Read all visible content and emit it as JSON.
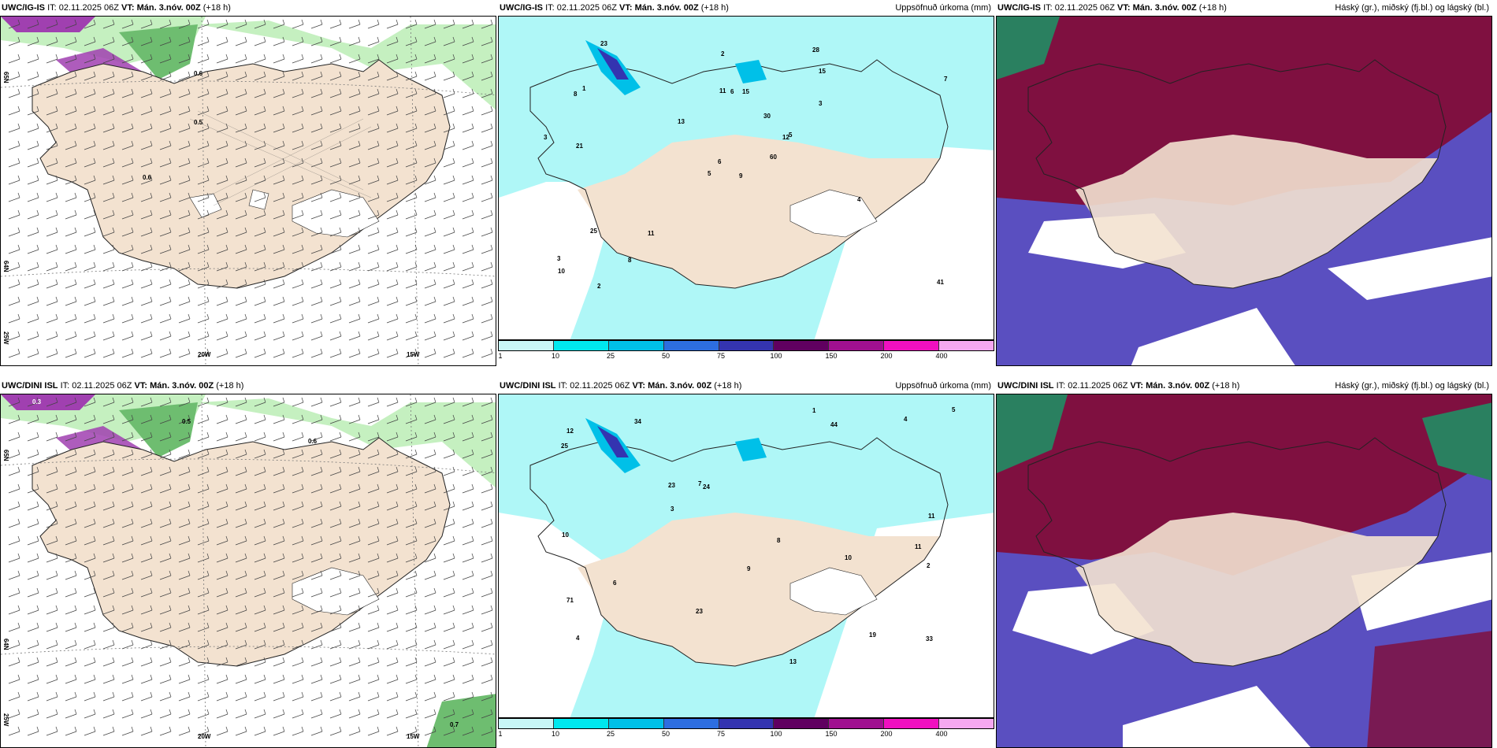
{
  "rows": [
    {
      "model": "UWC/IG-IS",
      "it_label": "IT: 02.11.2025 06Z",
      "vt_label": "VT: Mán. 3.nóv. 00Z",
      "lead": "(+18 h)",
      "precip_title": "Uppsöfnuð úrkoma (mm)",
      "cloud_title": "Háský (gr.), miðský (fj.bl.) og lágský (bl.)",
      "lon_labels": [
        "20W",
        "15W"
      ],
      "lat_labels": [
        "65N",
        "64N"
      ],
      "lon_side_label": "25W",
      "precip_values": [
        "9",
        "8",
        "6",
        "3",
        "12",
        "11",
        "28",
        "15",
        "15",
        "60",
        "23",
        "41",
        "21",
        "7",
        "5",
        "3",
        "2",
        "11",
        "30",
        "25",
        "13",
        "10",
        "8",
        "6",
        "5",
        "4",
        "1",
        "2",
        "3"
      ]
    },
    {
      "model": "UWC/DINI ISL",
      "it_label": "IT: 02.11.2025 06Z",
      "vt_label": "VT: Mán. 3.nóv. 00Z",
      "lead": "(+18 h)",
      "precip_title": "Uppsöfnuð úrkoma (mm)",
      "cloud_title": "Háský (gr.), miðský (fj.bl.) og lágský (bl.)",
      "lon_labels": [
        "20W",
        "15W"
      ],
      "lat_labels": [
        "65N",
        "64N"
      ],
      "lon_side_label": "25W",
      "precip_values": [
        "10",
        "11",
        "4",
        "34",
        "24",
        "19",
        "71",
        "44",
        "23",
        "13",
        "25",
        "10",
        "12",
        "33",
        "23",
        "11",
        "9",
        "8",
        "7",
        "6",
        "5",
        "4",
        "3",
        "2",
        "1"
      ]
    }
  ],
  "colorbar": {
    "ticks": [
      "1",
      "10",
      "25",
      "50",
      "75",
      "100",
      "150",
      "200",
      "400"
    ],
    "colors": [
      "#c8f6f6",
      "#00e8ee",
      "#00c0e8",
      "#2d6ee0",
      "#3434b0",
      "#600060",
      "#a01090",
      "#f010c0",
      "#f5a8f0"
    ]
  },
  "colors": {
    "land": "#f3e2d0",
    "sea_precip": "#aff7f7",
    "green_light": "#c5f0c0",
    "green_dark": "#6ebd70",
    "purple": "#a040b0",
    "cloud_high": "#7f1040",
    "cloud_mid": "#5a4fc0",
    "cloud_low": "#2a8060"
  }
}
